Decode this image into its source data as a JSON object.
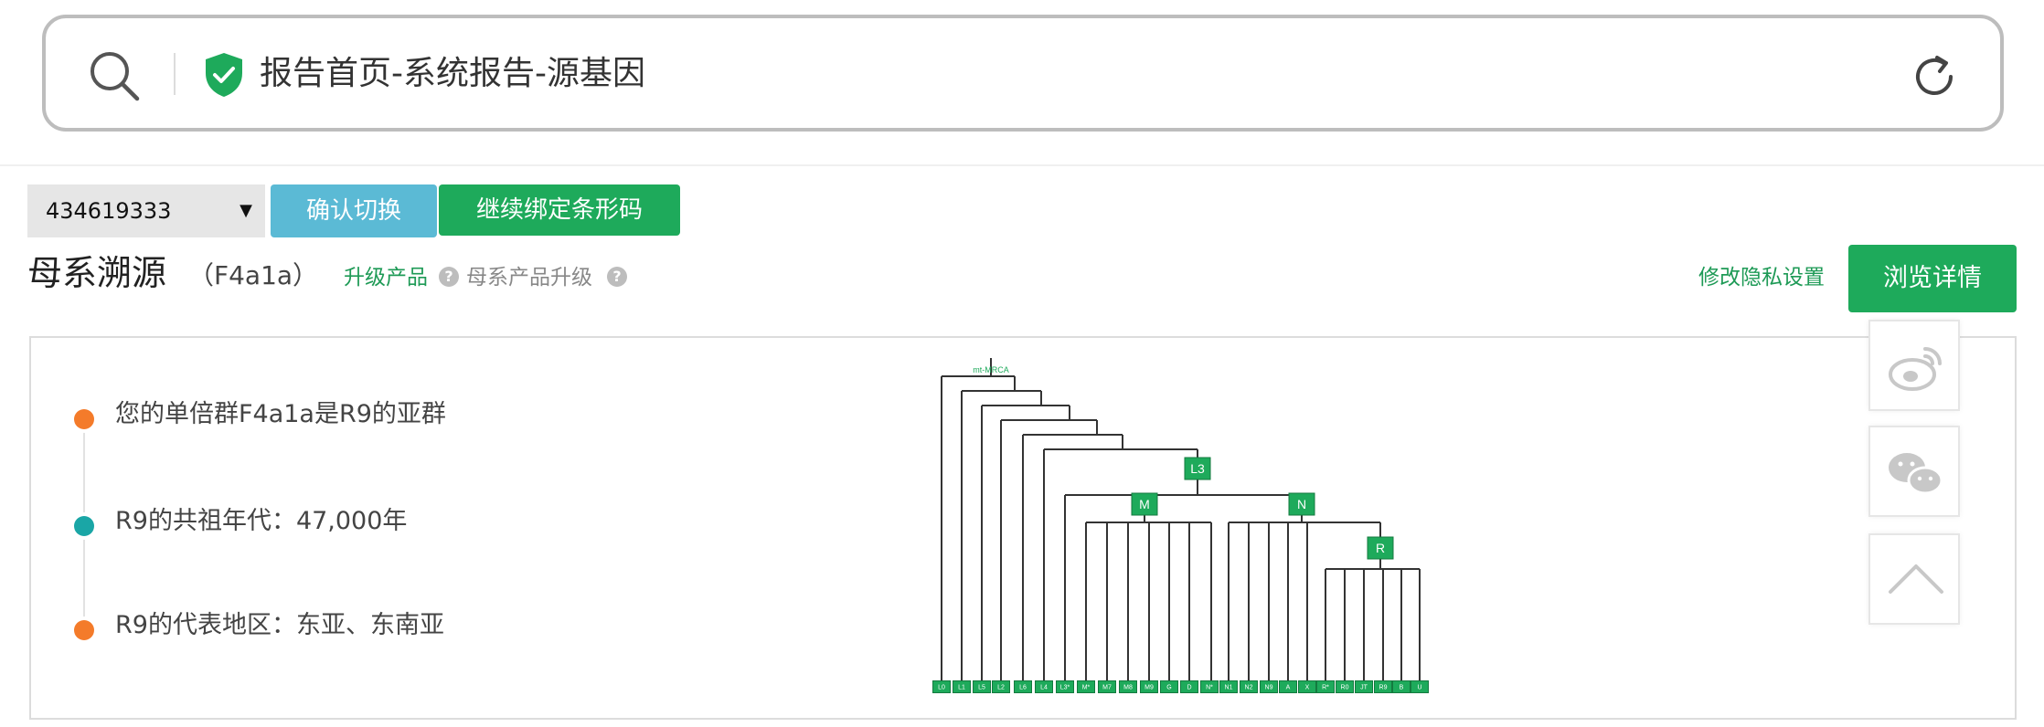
{
  "browser": {
    "page_title": "报告首页-系统报告-源基因"
  },
  "toolbar": {
    "barcode_value": "434619333",
    "confirm_switch_label": "确认切换",
    "continue_bind_label": "继续绑定条形码"
  },
  "heading": {
    "title": "母系溯源",
    "haplogroup": "（F4a1a）",
    "upgrade_product_link": "升级产品",
    "maternal_upgrade_label": "母系产品升级",
    "privacy_link": "修改隐私设置",
    "detail_button": "浏览详情"
  },
  "timeline": {
    "items": [
      {
        "text": "您的单倍群F4a1a是R9的亚群",
        "dot_color": "#f47b2a"
      },
      {
        "text": "R9的共祖年代：47,000年",
        "dot_color": "#1aa6a6"
      },
      {
        "text": "R9的代表地区：东亚、东南亚",
        "dot_color": "#f47b2a"
      }
    ]
  },
  "tree": {
    "root_label": "mt-MRCA",
    "nodes": [
      "L3",
      "M",
      "N",
      "R"
    ],
    "leaves": [
      "L0",
      "L1",
      "L5",
      "L2",
      "L6",
      "L4",
      "L3*",
      "M*",
      "M7",
      "M8",
      "M9",
      "G",
      "D",
      "N*",
      "N1",
      "N2",
      "N9",
      "A",
      "X",
      "R*",
      "R0",
      "JT",
      "R9",
      "B",
      "U"
    ]
  },
  "share": {
    "icons": [
      "weibo-icon",
      "wechat-icon",
      "chevron-up-icon"
    ]
  },
  "colors": {
    "brand_green": "#1eaa5b",
    "button_blue": "#5bbad5",
    "link_green": "#1e9a56"
  }
}
